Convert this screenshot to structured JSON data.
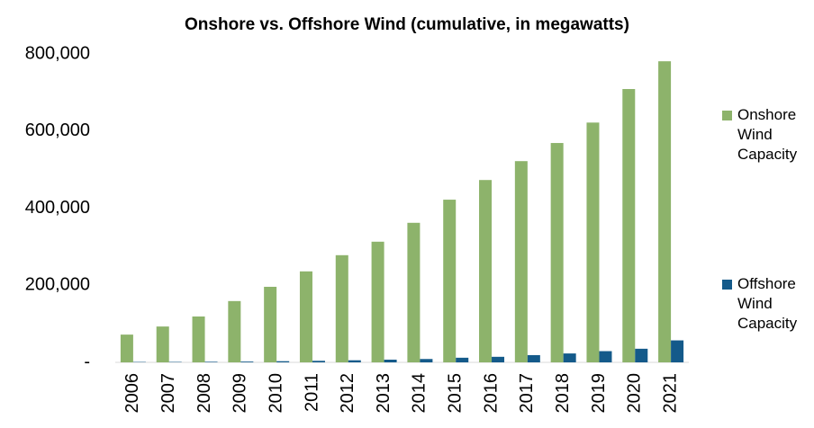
{
  "chart_data": {
    "type": "bar",
    "title": "Onshore vs. Offshore Wind (cumulative, in megawatts)",
    "categories": [
      "2006",
      "2007",
      "2008",
      "2009",
      "2010",
      "2011",
      "2012",
      "2013",
      "2014",
      "2015",
      "2016",
      "2017",
      "2018",
      "2019",
      "2020",
      "2021"
    ],
    "series": [
      {
        "name": "Onshore Wind Capacity",
        "color": "#8db36b",
        "values": [
          72000,
          93000,
          119000,
          159000,
          196000,
          236000,
          278000,
          313000,
          362000,
          422000,
          473000,
          522000,
          569000,
          622000,
          709000,
          781000
        ]
      },
      {
        "name": "Offshore Wind Capacity",
        "color": "#145a8a",
        "values": [
          1000,
          1100,
          1500,
          2000,
          3000,
          4000,
          5400,
          7000,
          8700,
          12000,
          14400,
          18800,
          23100,
          29100,
          35300,
          57000
        ]
      }
    ],
    "ylim": [
      0,
      800000
    ],
    "yticks": [
      {
        "value": 0,
        "label": "-"
      },
      {
        "value": 200000,
        "label": "200,000"
      },
      {
        "value": 400000,
        "label": "400,000"
      },
      {
        "value": 600000,
        "label": "600,000"
      },
      {
        "value": 800000,
        "label": "800,000"
      }
    ],
    "grid": false,
    "legend": "right"
  }
}
